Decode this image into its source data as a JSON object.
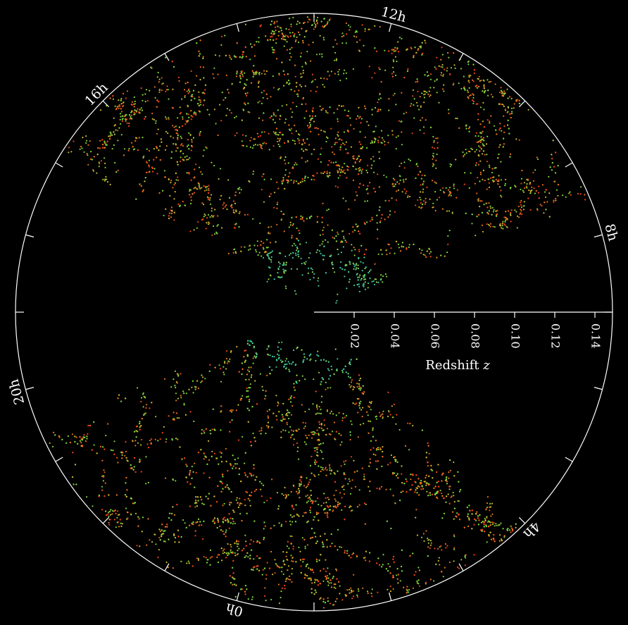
{
  "hour_labels": [
    "12h",
    "16h",
    "20h",
    "0h",
    "4h",
    "8h"
  ],
  "redshift_axis": {
    "label": "Redshift",
    "variable": "z",
    "ticks": [
      "0.02",
      "0.04",
      "0.06",
      "0.08",
      "0.10",
      "0.12",
      "0.14"
    ]
  }
}
